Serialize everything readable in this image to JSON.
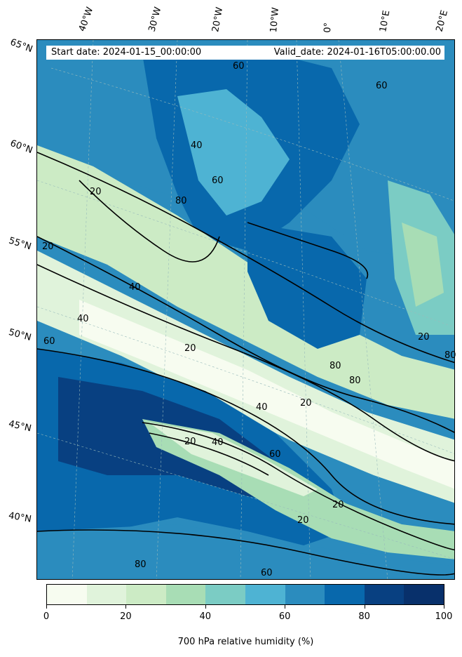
{
  "header": {
    "start_date": "Start date: 2024-01-15_00:00:00",
    "valid_date": "Valid_date: 2024-01-16T05:00:00.00"
  },
  "map": {
    "longitude_labels": [
      "40°W",
      "30°W",
      "20°W",
      "10°W",
      "0°",
      "10°E",
      "20°E"
    ],
    "latitude_labels": [
      "65°N",
      "60°N",
      "55°N",
      "50°N",
      "45°N",
      "40°N"
    ],
    "contour_labels": [
      "20",
      "40",
      "60",
      "80"
    ]
  },
  "colorbar": {
    "label": "700 hPa relative humidity (%)",
    "ticks": [
      "0",
      "20",
      "40",
      "60",
      "80",
      "100"
    ],
    "colors": [
      "#f7fcf0",
      "#e0f3db",
      "#ccebc5",
      "#a8ddb5",
      "#7bccc4",
      "#4eb3d3",
      "#2b8cbe",
      "#0868ac",
      "#084081",
      "#08306b"
    ],
    "levels": [
      0,
      10,
      20,
      30,
      40,
      50,
      60,
      70,
      80,
      90,
      100
    ]
  }
}
